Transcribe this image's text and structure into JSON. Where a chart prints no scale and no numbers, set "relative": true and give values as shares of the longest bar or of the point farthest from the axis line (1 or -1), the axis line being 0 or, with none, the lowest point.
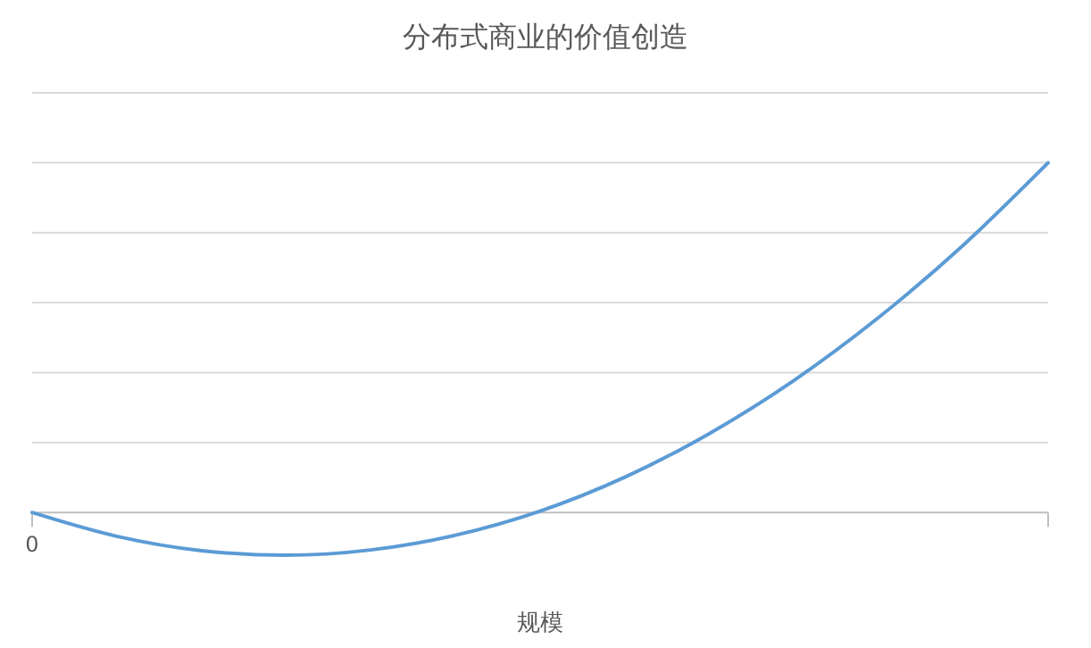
{
  "chart_data": {
    "type": "line",
    "title": "分布式商业的价值创造",
    "xlabel": "规模",
    "relative": true,
    "grid": "y",
    "annotations": [
      "0"
    ],
    "categories": [
      null,
      null,
      null,
      null,
      null,
      null,
      null,
      null,
      null,
      null,
      null,
      null,
      null
    ],
    "series": [
      {
        "color": "#5b9bd5",
        "values": [
          0,
          -0.068,
          -0.109,
          -0.122,
          -0.107,
          -0.065,
          0.004,
          0.101,
          0.226,
          0.378,
          0.558,
          0.765,
          1
        ]
      }
    ]
  }
}
